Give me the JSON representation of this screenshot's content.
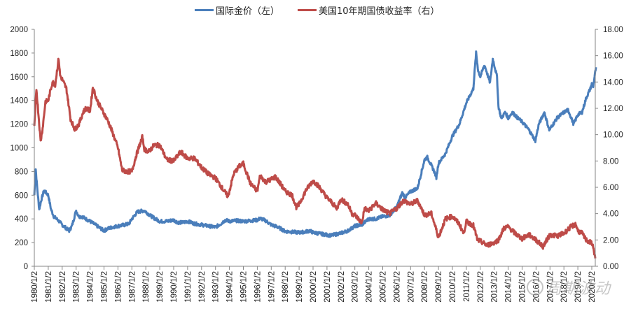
{
  "chart_data": {
    "type": "line",
    "title": "",
    "legend": {
      "position": "top",
      "entries": [
        {
          "name": "国际金价（左）",
          "color": "#4A7EBB",
          "axis": "left"
        },
        {
          "name": "美国10年期国债收益率（右）",
          "color": "#BE4B48",
          "axis": "right"
        }
      ]
    },
    "xlabel": "",
    "ylabel_left": "",
    "ylabel_right": "",
    "x_tick_labels": [
      "1980/1/2",
      "1981/1/2",
      "1982/1/2",
      "1983/1/2",
      "1984/1/2",
      "1985/1/2",
      "1986/1/2",
      "1987/1/2",
      "1988/1/2",
      "1989/1/2",
      "1990/1/2",
      "1991/1/2",
      "1992/1/2",
      "1993/1/2",
      "1994/1/2",
      "1995/1/2",
      "1996/1/2",
      "1997/1/2",
      "1998/1/2",
      "1999/1/2",
      "2000/1/2",
      "2001/1/2",
      "2002/1/2",
      "2003/1/2",
      "2004/1/2",
      "2005/1/2",
      "2006/1/2",
      "2007/1/2",
      "2008/1/2",
      "2009/1/2",
      "2010/1/2",
      "2011/1/2",
      "2012/1/2",
      "2013/1/2",
      "2014/1/2",
      "2015/1/2",
      "2016/1/2",
      "2017/1/2",
      "2018/1/2",
      "2019/1/2",
      "2020/1/2"
    ],
    "y_left": {
      "min": 0,
      "max": 2000,
      "step": 200,
      "tick_labels": [
        "0",
        "200",
        "400",
        "600",
        "800",
        "1000",
        "1200",
        "1400",
        "1600",
        "1800",
        "2000"
      ]
    },
    "y_right": {
      "min": 0,
      "max": 18,
      "step": 2,
      "tick_labels": [
        "0.00",
        "2.00",
        "4.00",
        "6.00",
        "8.00",
        "10.00",
        "12.00",
        "14.00",
        "16.00",
        "18.00"
      ]
    },
    "grid": false,
    "series": [
      {
        "name": "国际金价（左）",
        "axis": "left",
        "color": "#4A7EBB",
        "x": [
          1980.0,
          1980.1,
          1980.2,
          1980.35,
          1980.5,
          1980.7,
          1981.0,
          1981.2,
          1981.4,
          1981.7,
          1982.0,
          1982.3,
          1982.5,
          1982.7,
          1983.0,
          1983.2,
          1983.4,
          1983.7,
          1984.0,
          1984.5,
          1985.0,
          1985.3,
          1985.6,
          1986.0,
          1986.5,
          1986.8,
          1987.0,
          1987.4,
          1987.9,
          1988.3,
          1988.7,
          1989.0,
          1989.5,
          1990.0,
          1990.3,
          1990.7,
          1991.0,
          1991.5,
          1992.0,
          1992.5,
          1993.0,
          1993.4,
          1993.7,
          1994.0,
          1994.5,
          1995.0,
          1995.5,
          1996.0,
          1996.2,
          1996.6,
          1997.0,
          1997.5,
          1998.0,
          1998.5,
          1999.0,
          1999.4,
          1999.75,
          2000.0,
          2000.5,
          2001.0,
          2001.3,
          2002.0,
          2002.5,
          2003.0,
          2003.5,
          2004.0,
          2004.5,
          2005.0,
          2005.5,
          2006.0,
          2006.4,
          2006.6,
          2007.0,
          2007.5,
          2008.0,
          2008.2,
          2008.7,
          2008.85,
          2009.0,
          2009.5,
          2010.0,
          2010.5,
          2011.0,
          2011.5,
          2011.7,
          2011.85,
          2012.0,
          2012.3,
          2012.7,
          2012.9,
          2013.2,
          2013.3,
          2013.5,
          2013.8,
          2014.0,
          2014.3,
          2014.7,
          2015.0,
          2015.5,
          2015.95,
          2016.2,
          2016.6,
          2016.95,
          2017.5,
          2018.0,
          2018.3,
          2018.7,
          2019.0,
          2019.3,
          2019.6,
          2019.9,
          2020.0,
          2020.1,
          2020.2,
          2020.3
        ],
        "values": [
          600,
          820,
          670,
          480,
          560,
          640,
          600,
          480,
          420,
          390,
          350,
          320,
          300,
          340,
          470,
          420,
          420,
          400,
          380,
          340,
          300,
          320,
          330,
          340,
          350,
          360,
          400,
          460,
          470,
          430,
          400,
          380,
          380,
          390,
          370,
          370,
          380,
          360,
          350,
          340,
          330,
          360,
          390,
          380,
          385,
          380,
          385,
          390,
          405,
          385,
          350,
          330,
          295,
          290,
          285,
          290,
          300,
          285,
          275,
          265,
          260,
          280,
          300,
          340,
          350,
          400,
          400,
          420,
          430,
          500,
          620,
          580,
          630,
          660,
          900,
          920,
          800,
          750,
          870,
          950,
          1100,
          1200,
          1380,
          1500,
          1800,
          1650,
          1600,
          1700,
          1550,
          1750,
          1600,
          1350,
          1250,
          1300,
          1250,
          1300,
          1250,
          1220,
          1150,
          1060,
          1200,
          1300,
          1150,
          1250,
          1300,
          1320,
          1200,
          1280,
          1300,
          1420,
          1500,
          1540,
          1520,
          1600,
          1680
        ]
      },
      {
        "name": "美国10年期国债收益率（右）",
        "axis": "right",
        "color": "#BE4B48",
        "x": [
          1980.0,
          1980.15,
          1980.3,
          1980.45,
          1980.6,
          1980.8,
          1981.0,
          1981.3,
          1981.5,
          1981.75,
          1981.85,
          1982.0,
          1982.3,
          1982.6,
          1982.9,
          1983.2,
          1983.5,
          1983.7,
          1984.0,
          1984.2,
          1984.5,
          1984.8,
          1985.0,
          1985.3,
          1985.6,
          1986.0,
          1986.3,
          1986.6,
          1987.0,
          1987.3,
          1987.75,
          1987.9,
          1988.2,
          1988.6,
          1989.0,
          1989.5,
          1990.0,
          1990.5,
          1991.0,
          1991.5,
          1992.0,
          1992.5,
          1993.0,
          1993.5,
          1993.9,
          1994.3,
          1994.7,
          1995.0,
          1995.5,
          1996.0,
          1996.2,
          1996.6,
          1997.0,
          1997.3,
          1997.7,
          1998.0,
          1998.5,
          1998.8,
          1999.0,
          1999.5,
          2000.0,
          2000.3,
          2000.6,
          2001.0,
          2001.3,
          2001.7,
          2002.0,
          2002.5,
          2002.8,
          2003.0,
          2003.5,
          2003.7,
          2004.0,
          2004.5,
          2005.0,
          2005.5,
          2006.0,
          2006.5,
          2007.0,
          2007.5,
          2008.0,
          2008.5,
          2009.0,
          2009.5,
          2010.0,
          2010.5,
          2010.8,
          2011.0,
          2011.5,
          2011.8,
          2012.0,
          2012.5,
          2013.0,
          2013.3,
          2013.7,
          2014.0,
          2014.5,
          2015.0,
          2015.5,
          2016.0,
          2016.5,
          2017.0,
          2017.5,
          2018.0,
          2018.5,
          2018.85,
          2019.0,
          2019.3,
          2019.6,
          2019.9,
          2020.0,
          2020.15,
          2020.25
        ],
        "values": [
          10.5,
          13.5,
          11.5,
          9.5,
          10.5,
          12.5,
          12.6,
          14.0,
          13.8,
          15.8,
          14.5,
          14.2,
          13.5,
          11.2,
          10.4,
          10.8,
          11.7,
          12.0,
          11.8,
          13.6,
          12.6,
          12.0,
          11.6,
          11.0,
          10.2,
          9.0,
          7.3,
          7.2,
          7.2,
          8.4,
          9.8,
          8.9,
          8.7,
          9.2,
          9.2,
          8.1,
          8.0,
          8.7,
          8.2,
          8.2,
          7.5,
          7.0,
          6.7,
          5.9,
          5.3,
          7.0,
          7.6,
          7.8,
          6.3,
          5.7,
          6.9,
          6.4,
          6.6,
          6.8,
          6.2,
          5.7,
          5.4,
          4.5,
          4.7,
          5.8,
          6.5,
          6.2,
          5.8,
          5.2,
          4.9,
          4.4,
          5.1,
          4.7,
          4.0,
          3.9,
          3.3,
          4.4,
          4.2,
          4.8,
          4.3,
          4.0,
          4.4,
          5.0,
          4.7,
          5.0,
          3.9,
          4.0,
          2.2,
          3.6,
          3.8,
          3.2,
          2.5,
          3.4,
          3.1,
          2.0,
          1.9,
          1.6,
          1.8,
          2.0,
          2.9,
          3.0,
          2.5,
          2.1,
          2.4,
          2.0,
          1.5,
          2.4,
          2.3,
          2.5,
          3.0,
          3.2,
          2.7,
          2.5,
          2.0,
          1.8,
          1.8,
          1.2,
          0.6
        ]
      }
    ]
  },
  "watermark": {
    "text": "周期波动",
    "icon": "wechat-icon"
  }
}
